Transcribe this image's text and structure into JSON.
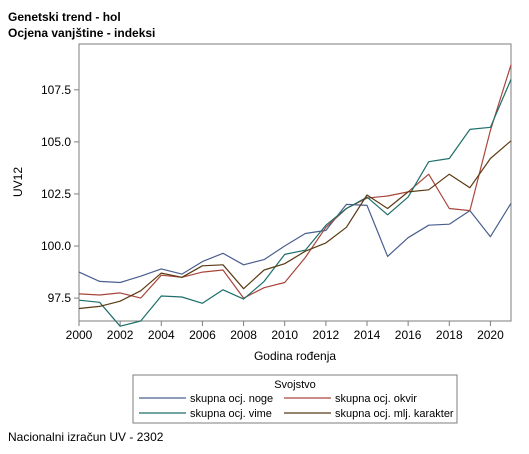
{
  "header": {
    "title": "Genetski trend - hol",
    "subtitle": "Ocjena vanjštine - indeksi"
  },
  "footer": {
    "note": "Nacionalni izračun UV - 2302"
  },
  "chart_data": {
    "type": "line",
    "xlabel": "Godina rođenja",
    "ylabel": "UV12",
    "xlim": [
      2000,
      2021
    ],
    "ylim": [
      96.4,
      109.7
    ],
    "x_ticks": [
      2000,
      2002,
      2004,
      2006,
      2008,
      2010,
      2012,
      2014,
      2016,
      2018,
      2020
    ],
    "y_ticks": [
      97.5,
      100.0,
      102.5,
      105.0,
      107.5
    ],
    "y_tick_labels": [
      "97.5",
      "100.0",
      "102.5",
      "105.0",
      "107.5"
    ],
    "grid": false,
    "legend": {
      "title": "Svojstvo",
      "placement": "bottom"
    },
    "x": [
      2000,
      2001,
      2002,
      2003,
      2004,
      2005,
      2006,
      2007,
      2008,
      2009,
      2010,
      2011,
      2012,
      2013,
      2014,
      2015,
      2016,
      2017,
      2018,
      2019,
      2020,
      2021
    ],
    "series": [
      {
        "name": "skupna ocj. noge",
        "color": "#4a5f8f",
        "values": [
          98.75,
          98.3,
          98.25,
          98.55,
          98.9,
          98.65,
          99.25,
          99.65,
          99.1,
          99.35,
          100.0,
          100.6,
          100.75,
          102.0,
          101.95,
          99.5,
          100.4,
          101.0,
          101.05,
          101.7,
          100.45,
          102.05
        ]
      },
      {
        "name": "skupna ocj. okvir",
        "color": "#a8463c",
        "values": [
          97.7,
          97.65,
          97.75,
          97.5,
          98.6,
          98.5,
          98.75,
          98.85,
          97.5,
          98.0,
          98.25,
          99.45,
          100.9,
          101.8,
          102.3,
          102.4,
          102.6,
          103.45,
          101.8,
          101.7,
          105.55,
          108.7
        ]
      },
      {
        "name": "skupna ocj. vime",
        "color": "#1d6f6a",
        "values": [
          97.4,
          97.3,
          96.15,
          96.4,
          97.6,
          97.55,
          97.25,
          97.9,
          97.45,
          98.3,
          99.6,
          99.8,
          101.0,
          101.8,
          102.35,
          101.5,
          102.35,
          104.05,
          104.2,
          105.6,
          105.7,
          108.0
        ]
      },
      {
        "name": "skupna ocj. mlj. karakter",
        "color": "#5a3a13",
        "values": [
          97.0,
          97.1,
          97.35,
          97.85,
          98.7,
          98.5,
          99.05,
          99.1,
          97.95,
          98.85,
          99.15,
          99.75,
          100.15,
          100.9,
          102.45,
          101.8,
          102.6,
          102.7,
          103.45,
          102.8,
          104.2,
          105.05
        ]
      }
    ]
  }
}
